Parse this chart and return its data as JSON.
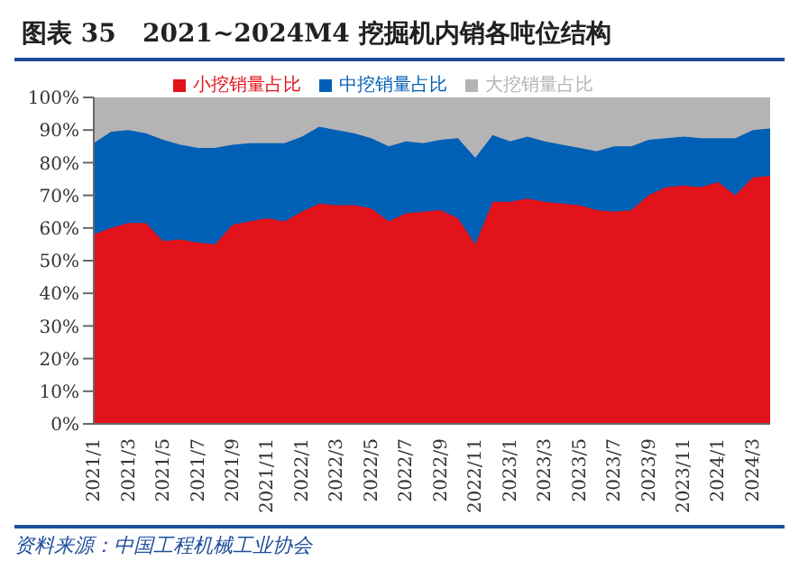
{
  "chart_data": {
    "type": "area",
    "title": "图表 35   2021~2024M4 挖掘机内销各吨位结构",
    "annotations": [
      "资料来源：中国工程机械工业协会"
    ],
    "categories": [
      "2021/1",
      null,
      "2021/3",
      null,
      "2021/5",
      null,
      "2021/7",
      null,
      "2021/9",
      null,
      "2021/11",
      null,
      "2022/1",
      null,
      "2022/3",
      null,
      "2022/5",
      null,
      "2022/7",
      null,
      "2022/9",
      null,
      "2022/11",
      null,
      "2023/1",
      null,
      "2023/3",
      null,
      "2023/5",
      null,
      "2023/7",
      null,
      "2023/9",
      null,
      "2023/11",
      null,
      "2024/1",
      null,
      "2024/3",
      null
    ],
    "stacked": true,
    "legend": "top",
    "grid": false,
    "ylim": [
      0,
      100
    ],
    "yticks": [
      {
        "value": 0,
        "label": "0%"
      },
      {
        "value": 10,
        "label": "10%"
      },
      {
        "value": 20,
        "label": "20%"
      },
      {
        "value": 30,
        "label": "30%"
      },
      {
        "value": 40,
        "label": "40%"
      },
      {
        "value": 50,
        "label": "50%"
      },
      {
        "value": 60,
        "label": "60%"
      },
      {
        "value": 70,
        "label": "70%"
      },
      {
        "value": 80,
        "label": "80%"
      },
      {
        "value": 90,
        "label": "90%"
      },
      {
        "value": 100,
        "label": "100%"
      }
    ],
    "series": [
      {
        "name": "小挖销量占比",
        "color": "#e3131b",
        "values": [
          58,
          60,
          61.5,
          61.5,
          56,
          56.5,
          55.5,
          55,
          61,
          62,
          63,
          62,
          65,
          67.5,
          67,
          67,
          66,
          62,
          64.5,
          65,
          65.5,
          63,
          55,
          68,
          68,
          69,
          68,
          67.5,
          67,
          65.5,
          65,
          65.5,
          70,
          72.5,
          73,
          72.5,
          74,
          70,
          75.5,
          76
        ]
      },
      {
        "name": "中挖销量占比",
        "color": "#0060b6",
        "values": [
          28,
          29.5,
          28.5,
          27.5,
          31,
          29,
          29,
          29.5,
          24.5,
          24,
          23,
          24,
          23,
          23.5,
          23,
          22,
          21.5,
          23,
          22,
          21,
          21.5,
          24.5,
          26.5,
          20.5,
          18.5,
          19,
          18.5,
          18,
          17.5,
          18,
          20,
          19.5,
          17,
          15,
          15,
          15,
          13.5,
          17.5,
          14.5,
          14.5
        ]
      },
      {
        "name": "大挖销量占比",
        "color": "#b4b4b4",
        "values": [
          14,
          10.5,
          10,
          11,
          13,
          14.5,
          15.5,
          15.5,
          14.5,
          14,
          14,
          14,
          12,
          9,
          10,
          11,
          12.5,
          15,
          13.5,
          14,
          13,
          12.5,
          18.5,
          11.5,
          13.5,
          12,
          13.5,
          14.5,
          15.5,
          16.5,
          15,
          15,
          13,
          12.5,
          12,
          12.5,
          12.5,
          12.5,
          10,
          9.5
        ]
      }
    ]
  }
}
